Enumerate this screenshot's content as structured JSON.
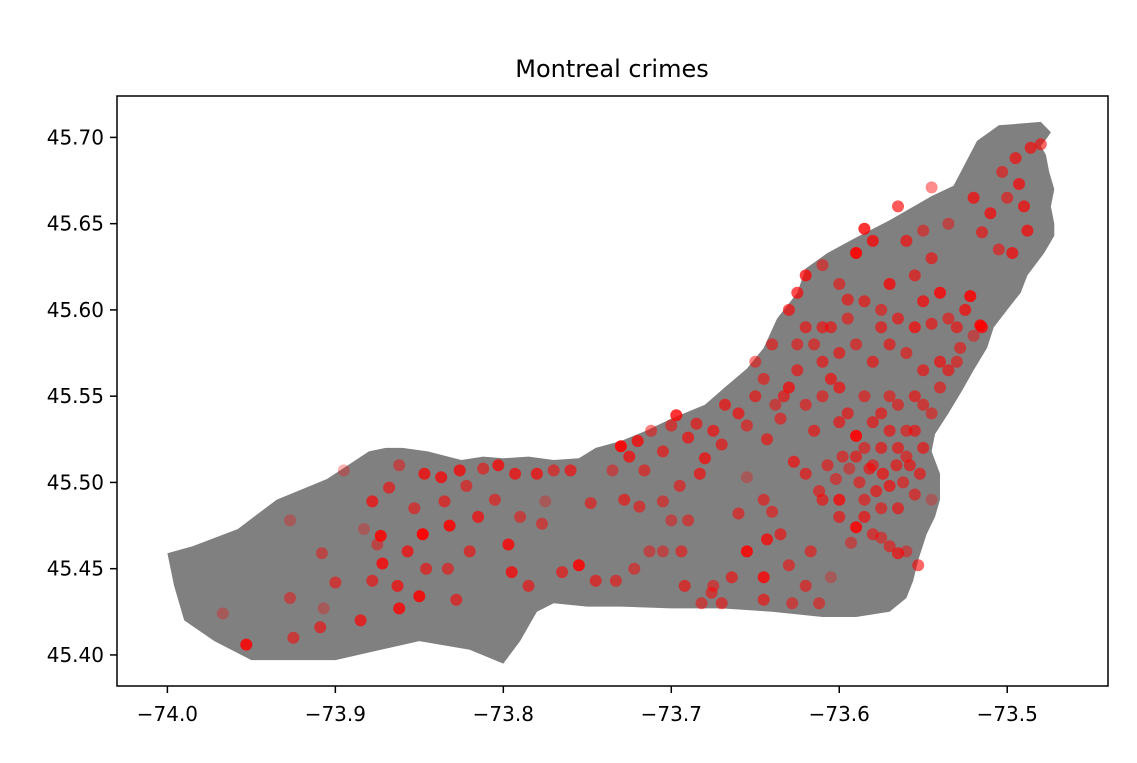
{
  "chart_data": {
    "type": "scatter",
    "title": "Montreal crimes",
    "xlabel": "",
    "ylabel": "",
    "xlim": [
      -74.03,
      -73.44
    ],
    "ylim": [
      45.382,
      45.724
    ],
    "xticks": [
      -74.0,
      -73.9,
      -73.8,
      -73.7,
      -73.6,
      -73.5
    ],
    "xtick_labels": [
      "−74.0",
      "−73.9",
      "−73.8",
      "−73.7",
      "−73.6",
      "−73.5"
    ],
    "yticks": [
      45.4,
      45.45,
      45.5,
      45.55,
      45.6,
      45.65,
      45.7
    ],
    "ytick_labels": [
      "45.40",
      "45.45",
      "45.50",
      "45.55",
      "45.60",
      "45.65",
      "45.70"
    ],
    "grid": false,
    "island_color": "#808080",
    "point_color": "#ff0000",
    "island_outline": [
      [
        -74.0,
        45.459
      ],
      [
        -73.985,
        45.463
      ],
      [
        -73.958,
        45.473
      ],
      [
        -73.935,
        45.49
      ],
      [
        -73.905,
        45.502
      ],
      [
        -73.88,
        45.518
      ],
      [
        -73.87,
        45.52
      ],
      [
        -73.86,
        45.52
      ],
      [
        -73.845,
        45.518
      ],
      [
        -73.825,
        45.513
      ],
      [
        -73.812,
        45.515
      ],
      [
        -73.8,
        45.514
      ],
      [
        -73.785,
        45.515
      ],
      [
        -73.77,
        45.513
      ],
      [
        -73.755,
        45.514
      ],
      [
        -73.745,
        45.52
      ],
      [
        -73.73,
        45.524
      ],
      [
        -73.715,
        45.53
      ],
      [
        -73.7,
        45.537
      ],
      [
        -73.68,
        45.545
      ],
      [
        -73.667,
        45.556
      ],
      [
        -73.655,
        45.566
      ],
      [
        -73.645,
        45.578
      ],
      [
        -73.637,
        45.595
      ],
      [
        -73.625,
        45.61
      ],
      [
        -73.62,
        45.624
      ],
      [
        -73.607,
        45.633
      ],
      [
        -73.59,
        45.642
      ],
      [
        -73.57,
        45.652
      ],
      [
        -73.545,
        45.666
      ],
      [
        -73.532,
        45.672
      ],
      [
        -73.526,
        45.683
      ],
      [
        -73.518,
        45.698
      ],
      [
        -73.505,
        45.707
      ],
      [
        -73.48,
        45.709
      ],
      [
        -73.474,
        45.703
      ],
      [
        -73.476,
        45.7
      ],
      [
        -73.48,
        45.695
      ],
      [
        -73.477,
        45.69
      ],
      [
        -73.475,
        45.68
      ],
      [
        -73.472,
        45.67
      ],
      [
        -73.474,
        45.66
      ],
      [
        -73.472,
        45.65
      ],
      [
        -73.472,
        45.643
      ],
      [
        -73.478,
        45.633
      ],
      [
        -73.488,
        45.62
      ],
      [
        -73.492,
        45.61
      ],
      [
        -73.5,
        45.6
      ],
      [
        -73.508,
        45.59
      ],
      [
        -73.512,
        45.578
      ],
      [
        -73.52,
        45.565
      ],
      [
        -73.527,
        45.553
      ],
      [
        -73.535,
        45.54
      ],
      [
        -73.543,
        45.528
      ],
      [
        -73.545,
        45.518
      ],
      [
        -73.54,
        45.505
      ],
      [
        -73.54,
        45.49
      ],
      [
        -73.543,
        45.48
      ],
      [
        -73.548,
        45.47
      ],
      [
        -73.553,
        45.455
      ],
      [
        -73.556,
        45.443
      ],
      [
        -73.56,
        45.433
      ],
      [
        -73.57,
        45.425
      ],
      [
        -73.59,
        45.422
      ],
      [
        -73.61,
        45.422
      ],
      [
        -73.64,
        45.425
      ],
      [
        -73.67,
        45.427
      ],
      [
        -73.7,
        45.427
      ],
      [
        -73.73,
        45.428
      ],
      [
        -73.75,
        45.428
      ],
      [
        -73.77,
        45.43
      ],
      [
        -73.78,
        45.425
      ],
      [
        -73.79,
        45.408
      ],
      [
        -73.8,
        45.395
      ],
      [
        -73.82,
        45.403
      ],
      [
        -73.85,
        45.408
      ],
      [
        -73.9,
        45.397
      ],
      [
        -73.93,
        45.397
      ],
      [
        -73.95,
        45.397
      ],
      [
        -73.972,
        45.408
      ],
      [
        -73.99,
        45.42
      ],
      [
        -73.996,
        45.44
      ]
    ],
    "points": [
      [
        -73.967,
        45.424,
        0.3
      ],
      [
        -73.953,
        45.406,
        0.85
      ],
      [
        -73.927,
        45.478,
        0.3
      ],
      [
        -73.927,
        45.433,
        0.45
      ],
      [
        -73.925,
        45.41,
        0.55
      ],
      [
        -73.908,
        45.459,
        0.45
      ],
      [
        -73.909,
        45.416,
        0.6
      ],
      [
        -73.907,
        45.427,
        0.3
      ],
      [
        -73.9,
        45.442,
        0.55
      ],
      [
        -73.895,
        45.507,
        0.3
      ],
      [
        -73.878,
        45.489,
        0.7
      ],
      [
        -73.883,
        45.473,
        0.3
      ],
      [
        -73.873,
        45.469,
        0.85
      ],
      [
        -73.868,
        45.497,
        0.6
      ],
      [
        -73.875,
        45.464,
        0.45
      ],
      [
        -73.872,
        45.453,
        0.8
      ],
      [
        -73.878,
        45.443,
        0.6
      ],
      [
        -73.885,
        45.42,
        0.7
      ],
      [
        -73.863,
        45.44,
        0.7
      ],
      [
        -73.862,
        45.427,
        0.8
      ],
      [
        -73.862,
        45.51,
        0.45
      ],
      [
        -73.857,
        45.46,
        0.7
      ],
      [
        -73.853,
        45.485,
        0.55
      ],
      [
        -73.848,
        45.47,
        0.95
      ],
      [
        -73.847,
        45.505,
        0.75
      ],
      [
        -73.846,
        45.45,
        0.6
      ],
      [
        -73.85,
        45.434,
        0.85
      ],
      [
        -73.837,
        45.503,
        0.75
      ],
      [
        -73.835,
        45.489,
        0.6
      ],
      [
        -73.832,
        45.475,
        0.85
      ],
      [
        -73.833,
        45.45,
        0.55
      ],
      [
        -73.828,
        45.432,
        0.6
      ],
      [
        -73.826,
        45.507,
        0.75
      ],
      [
        -73.822,
        45.498,
        0.55
      ],
      [
        -73.815,
        45.48,
        0.7
      ],
      [
        -73.82,
        45.46,
        0.6
      ],
      [
        -73.812,
        45.508,
        0.55
      ],
      [
        -73.803,
        45.51,
        0.75
      ],
      [
        -73.805,
        45.49,
        0.55
      ],
      [
        -73.797,
        45.464,
        0.8
      ],
      [
        -73.795,
        45.448,
        0.75
      ],
      [
        -73.793,
        45.505,
        0.7
      ],
      [
        -73.79,
        45.48,
        0.5
      ],
      [
        -73.785,
        45.44,
        0.6
      ],
      [
        -73.78,
        45.505,
        0.7
      ],
      [
        -73.777,
        45.476,
        0.5
      ],
      [
        -73.775,
        45.489,
        0.3
      ],
      [
        -73.77,
        45.507,
        0.55
      ],
      [
        -73.765,
        45.448,
        0.6
      ],
      [
        -73.755,
        45.452,
        0.85
      ],
      [
        -73.748,
        45.488,
        0.55
      ],
      [
        -73.76,
        45.507,
        0.65
      ],
      [
        -73.745,
        45.443,
        0.6
      ],
      [
        -73.735,
        45.507,
        0.45
      ],
      [
        -73.733,
        45.443,
        0.55
      ],
      [
        -73.728,
        45.49,
        0.6
      ],
      [
        -73.722,
        45.45,
        0.5
      ],
      [
        -73.719,
        45.486,
        0.55
      ],
      [
        -73.716,
        45.507,
        0.55
      ],
      [
        -73.713,
        45.46,
        0.45
      ],
      [
        -73.705,
        45.489,
        0.5
      ],
      [
        -73.705,
        45.46,
        0.45
      ],
      [
        -73.695,
        45.498,
        0.55
      ],
      [
        -73.7,
        45.478,
        0.45
      ],
      [
        -73.694,
        45.46,
        0.55
      ],
      [
        -73.69,
        45.478,
        0.5
      ],
      [
        -73.692,
        45.44,
        0.6
      ],
      [
        -73.683,
        45.505,
        0.65
      ],
      [
        -73.682,
        45.43,
        0.5
      ],
      [
        -73.676,
        45.436,
        0.55
      ],
      [
        -73.675,
        45.44,
        0.5
      ],
      [
        -73.67,
        45.43,
        0.55
      ],
      [
        -73.664,
        45.445,
        0.6
      ],
      [
        -73.66,
        45.482,
        0.55
      ],
      [
        -73.655,
        45.46,
        0.85
      ],
      [
        -73.655,
        45.503,
        0.3
      ],
      [
        -73.645,
        45.49,
        0.55
      ],
      [
        -73.64,
        45.483,
        0.55
      ],
      [
        -73.643,
        45.467,
        0.75
      ],
      [
        -73.645,
        45.445,
        0.8
      ],
      [
        -73.645,
        45.432,
        0.6
      ],
      [
        -73.635,
        45.47,
        0.6
      ],
      [
        -73.63,
        45.452,
        0.55
      ],
      [
        -73.628,
        45.43,
        0.5
      ],
      [
        -73.62,
        45.44,
        0.55
      ],
      [
        -73.617,
        45.46,
        0.55
      ],
      [
        -73.612,
        45.43,
        0.5
      ],
      [
        -73.605,
        45.445,
        0.3
      ],
      [
        -73.6,
        45.49,
        0.75
      ],
      [
        -73.593,
        45.465,
        0.45
      ],
      [
        -73.59,
        45.474,
        0.85
      ],
      [
        -73.585,
        45.48,
        0.65
      ],
      [
        -73.58,
        45.47,
        0.55
      ],
      [
        -73.575,
        45.468,
        0.5
      ],
      [
        -73.57,
        45.463,
        0.55
      ],
      [
        -73.565,
        45.459,
        0.65
      ],
      [
        -73.56,
        45.46,
        0.45
      ],
      [
        -73.553,
        45.452,
        0.6
      ],
      [
        -73.545,
        45.49,
        0.3
      ],
      [
        -73.73,
        45.521,
        0.9
      ],
      [
        -73.725,
        45.515,
        0.7
      ],
      [
        -73.72,
        45.524,
        0.75
      ],
      [
        -73.712,
        45.53,
        0.5
      ],
      [
        -73.705,
        45.518,
        0.6
      ],
      [
        -73.7,
        45.533,
        0.55
      ],
      [
        -73.697,
        45.539,
        0.8
      ],
      [
        -73.69,
        45.526,
        0.65
      ],
      [
        -73.685,
        45.534,
        0.6
      ],
      [
        -73.68,
        45.514,
        0.7
      ],
      [
        -73.675,
        45.53,
        0.65
      ],
      [
        -73.67,
        45.522,
        0.6
      ],
      [
        -73.668,
        45.545,
        0.65
      ],
      [
        -73.66,
        45.54,
        0.65
      ],
      [
        -73.655,
        45.533,
        0.55
      ],
      [
        -73.65,
        45.55,
        0.6
      ],
      [
        -73.645,
        45.56,
        0.55
      ],
      [
        -73.643,
        45.525,
        0.6
      ],
      [
        -73.638,
        45.545,
        0.5
      ],
      [
        -73.635,
        45.537,
        0.55
      ],
      [
        -73.63,
        45.555,
        0.7
      ],
      [
        -73.625,
        45.565,
        0.6
      ],
      [
        -73.62,
        45.545,
        0.55
      ],
      [
        -73.615,
        45.53,
        0.6
      ],
      [
        -73.61,
        45.55,
        0.55
      ],
      [
        -73.605,
        45.56,
        0.65
      ],
      [
        -73.6,
        45.555,
        0.65
      ],
      [
        -73.595,
        45.54,
        0.6
      ],
      [
        -73.59,
        45.527,
        0.9
      ],
      [
        -73.585,
        45.55,
        0.55
      ],
      [
        -73.58,
        45.535,
        0.6
      ],
      [
        -73.575,
        45.52,
        0.6
      ],
      [
        -73.57,
        45.55,
        0.55
      ],
      [
        -73.565,
        45.52,
        0.6
      ],
      [
        -73.56,
        45.515,
        0.55
      ],
      [
        -73.555,
        45.53,
        0.6
      ],
      [
        -73.55,
        45.545,
        0.55
      ],
      [
        -73.545,
        45.54,
        0.5
      ],
      [
        -73.54,
        45.555,
        0.55
      ],
      [
        -73.535,
        45.565,
        0.6
      ],
      [
        -73.528,
        45.578,
        0.55
      ],
      [
        -73.52,
        45.585,
        0.45
      ],
      [
        -73.515,
        45.59,
        0.75
      ],
      [
        -73.633,
        45.55,
        0.6
      ],
      [
        -73.627,
        45.512,
        0.65
      ],
      [
        -73.62,
        45.505,
        0.6
      ],
      [
        -73.612,
        45.495,
        0.55
      ],
      [
        -73.607,
        45.51,
        0.55
      ],
      [
        -73.602,
        45.502,
        0.5
      ],
      [
        -73.598,
        45.515,
        0.55
      ],
      [
        -73.594,
        45.508,
        0.45
      ],
      [
        -73.588,
        45.5,
        0.55
      ],
      [
        -73.582,
        45.508,
        0.6
      ],
      [
        -73.578,
        45.495,
        0.6
      ],
      [
        -73.574,
        45.505,
        0.65
      ],
      [
        -73.57,
        45.498,
        0.65
      ],
      [
        -73.566,
        45.51,
        0.6
      ],
      [
        -73.562,
        45.5,
        0.55
      ],
      [
        -73.558,
        45.51,
        0.6
      ],
      [
        -73.555,
        45.493,
        0.55
      ],
      [
        -73.552,
        45.505,
        0.6
      ],
      [
        -73.565,
        45.485,
        0.6
      ],
      [
        -73.575,
        45.485,
        0.55
      ],
      [
        -73.585,
        45.49,
        0.55
      ],
      [
        -73.6,
        45.48,
        0.6
      ],
      [
        -73.61,
        45.49,
        0.6
      ],
      [
        -73.63,
        45.6,
        0.65
      ],
      [
        -73.625,
        45.61,
        0.7
      ],
      [
        -73.62,
        45.62,
        0.75
      ],
      [
        -73.61,
        45.626,
        0.5
      ],
      [
        -73.605,
        45.59,
        0.6
      ],
      [
        -73.6,
        45.615,
        0.55
      ],
      [
        -73.595,
        45.606,
        0.6
      ],
      [
        -73.59,
        45.633,
        0.9
      ],
      [
        -73.585,
        45.647,
        0.8
      ],
      [
        -73.58,
        45.64,
        0.75
      ],
      [
        -73.575,
        45.6,
        0.55
      ],
      [
        -73.57,
        45.615,
        0.75
      ],
      [
        -73.565,
        45.66,
        0.65
      ],
      [
        -73.56,
        45.64,
        0.65
      ],
      [
        -73.555,
        45.62,
        0.6
      ],
      [
        -73.55,
        45.605,
        0.7
      ],
      [
        -73.545,
        45.63,
        0.6
      ],
      [
        -73.54,
        45.61,
        0.8
      ],
      [
        -73.53,
        45.59,
        0.6
      ],
      [
        -73.525,
        45.6,
        0.7
      ],
      [
        -73.522,
        45.608,
        0.85
      ],
      [
        -73.516,
        45.591,
        0.85
      ],
      [
        -73.515,
        45.645,
        0.6
      ],
      [
        -73.51,
        45.656,
        0.7
      ],
      [
        -73.505,
        45.635,
        0.55
      ],
      [
        -73.503,
        45.68,
        0.55
      ],
      [
        -73.5,
        45.665,
        0.55
      ],
      [
        -73.497,
        45.633,
        0.7
      ],
      [
        -73.495,
        45.688,
        0.65
      ],
      [
        -73.493,
        45.673,
        0.7
      ],
      [
        -73.49,
        45.66,
        0.7
      ],
      [
        -73.488,
        45.646,
        0.7
      ],
      [
        -73.486,
        45.694,
        0.65
      ],
      [
        -73.48,
        45.696,
        0.6
      ],
      [
        -73.545,
        45.671,
        0.45
      ],
      [
        -73.55,
        45.646,
        0.5
      ],
      [
        -73.535,
        45.65,
        0.45
      ],
      [
        -73.52,
        45.665,
        0.7
      ],
      [
        -73.64,
        45.58,
        0.55
      ],
      [
        -73.65,
        45.57,
        0.5
      ],
      [
        -73.615,
        45.58,
        0.55
      ],
      [
        -73.61,
        45.57,
        0.6
      ],
      [
        -73.6,
        45.575,
        0.6
      ],
      [
        -73.59,
        45.58,
        0.55
      ],
      [
        -73.58,
        45.57,
        0.6
      ],
      [
        -73.57,
        45.58,
        0.6
      ],
      [
        -73.56,
        45.575,
        0.55
      ],
      [
        -73.55,
        45.565,
        0.6
      ],
      [
        -73.54,
        45.57,
        0.65
      ],
      [
        -73.53,
        45.57,
        0.55
      ],
      [
        -73.62,
        45.59,
        0.6
      ],
      [
        -73.595,
        45.595,
        0.55
      ],
      [
        -73.585,
        45.605,
        0.6
      ],
      [
        -73.575,
        45.59,
        0.6
      ],
      [
        -73.565,
        45.595,
        0.6
      ],
      [
        -73.555,
        45.59,
        0.7
      ],
      [
        -73.545,
        45.592,
        0.6
      ],
      [
        -73.535,
        45.595,
        0.55
      ],
      [
        -73.625,
        45.58,
        0.55
      ],
      [
        -73.61,
        45.59,
        0.6
      ],
      [
        -73.6,
        45.535,
        0.6
      ],
      [
        -73.585,
        45.52,
        0.55
      ],
      [
        -73.575,
        45.54,
        0.6
      ],
      [
        -73.565,
        45.545,
        0.55
      ],
      [
        -73.555,
        45.55,
        0.6
      ],
      [
        -73.56,
        45.53,
        0.55
      ],
      [
        -73.55,
        45.52,
        0.6
      ],
      [
        -73.57,
        45.53,
        0.6
      ],
      [
        -73.58,
        45.51,
        0.55
      ],
      [
        -73.59,
        45.515,
        0.6
      ]
    ]
  }
}
